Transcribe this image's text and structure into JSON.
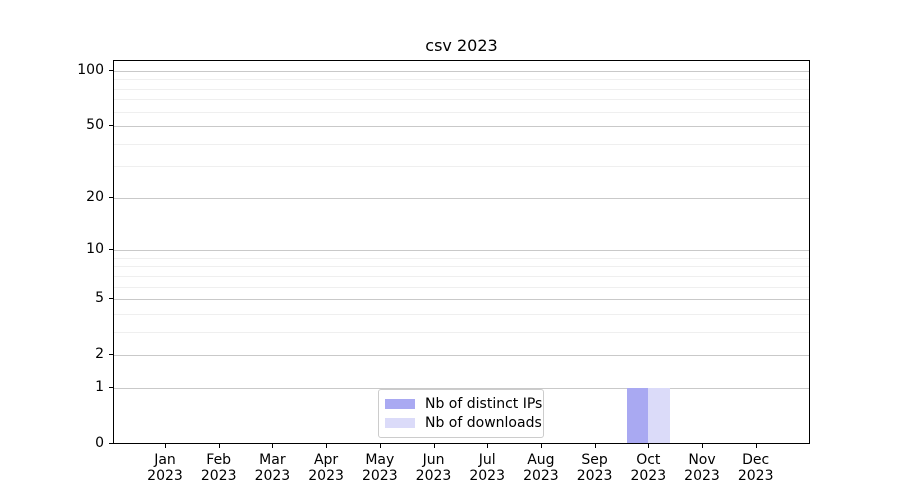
{
  "chart_data": {
    "type": "bar",
    "title": "csv 2023",
    "categories": [
      {
        "month": "Jan",
        "year": "2023"
      },
      {
        "month": "Feb",
        "year": "2023"
      },
      {
        "month": "Mar",
        "year": "2023"
      },
      {
        "month": "Apr",
        "year": "2023"
      },
      {
        "month": "May",
        "year": "2023"
      },
      {
        "month": "Jun",
        "year": "2023"
      },
      {
        "month": "Jul",
        "year": "2023"
      },
      {
        "month": "Aug",
        "year": "2023"
      },
      {
        "month": "Sep",
        "year": "2023"
      },
      {
        "month": "Oct",
        "year": "2023"
      },
      {
        "month": "Nov",
        "year": "2023"
      },
      {
        "month": "Dec",
        "year": "2023"
      }
    ],
    "series": [
      {
        "name": "Nb of distinct IPs",
        "color": "#a9a9f2",
        "values": [
          0,
          0,
          0,
          0,
          0,
          0,
          0,
          0,
          0,
          1,
          0,
          0
        ]
      },
      {
        "name": "Nb of downloads",
        "color": "#dbdbf9",
        "values": [
          0,
          0,
          0,
          0,
          0,
          0,
          0,
          0,
          0,
          1,
          0,
          0
        ]
      }
    ],
    "xlabel": "",
    "ylabel": "",
    "yscale": "log1p",
    "ylim": [
      0,
      114.5
    ],
    "yticks": [
      100,
      50,
      20,
      10,
      5,
      2,
      1,
      0
    ],
    "yticks_minor": [
      90,
      80,
      70,
      60,
      40,
      30,
      9,
      8,
      7,
      6,
      4,
      3
    ],
    "grid": true,
    "legend_position": "lower center"
  },
  "colors": {
    "series_distinct_ips": "#a9a9f2",
    "series_downloads": "#dbdbf9",
    "grid_major": "#c9c9c9",
    "grid_minor": "#efefef",
    "spine": "#000000",
    "legend_border": "#cccccc",
    "background": "#ffffff"
  }
}
